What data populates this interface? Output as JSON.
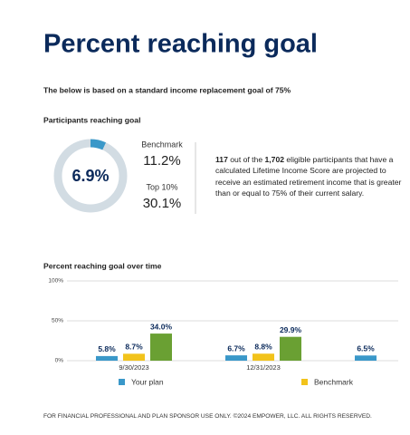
{
  "header": {
    "title": "Percent reaching goal",
    "subtitle": "The below is based on a standard income replacement goal of 75%"
  },
  "summary": {
    "heading": "Participants reaching goal",
    "donut": {
      "value": 6.9,
      "label": "6.9%",
      "color": "#3a98c9",
      "track_color": "#d2dce3"
    },
    "benchmark": {
      "label": "Benchmark",
      "value": "11.2%"
    },
    "top10": {
      "label": "Top 10%",
      "value": "30.1%"
    },
    "paragraph": [
      {
        "text": "117",
        "bold": true
      },
      {
        "text": " out of the "
      },
      {
        "text": "1,702",
        "bold": true
      },
      {
        "text": " eligible participants that have a calculated Lifetime Income Score are projected to receive an estimated retirement income that is greater than or equal to 75% of their current salary."
      }
    ]
  },
  "chart_data": {
    "type": "bar",
    "title": "Percent reaching goal over time",
    "categories": [
      "9/30/2023",
      "12/31/2023",
      null
    ],
    "series": [
      {
        "name": "Your plan",
        "color": "#3a98c9",
        "values": [
          5.8,
          6.7,
          6.5
        ],
        "value_labels": [
          "5.8%",
          "6.7%",
          "6.5%"
        ]
      },
      {
        "name": "Benchmark",
        "color": "#f2c31b",
        "values": [
          8.7,
          8.8,
          null
        ],
        "value_labels": [
          "8.7%",
          "8.8%",
          null
        ]
      },
      {
        "color": "#6aa033",
        "values": [
          34.0,
          29.9,
          null
        ],
        "value_labels": [
          "34.0%",
          "29.9%",
          null
        ]
      }
    ],
    "ylim": [
      0,
      100
    ],
    "yticks": [
      {
        "value": 0,
        "label": "0%"
      },
      {
        "value": 50,
        "label": "50%"
      },
      {
        "value": 100,
        "label": "100%"
      }
    ],
    "grid": true
  },
  "footer": {
    "text": "FOR FINANCIAL PROFESSIONAL AND PLAN SPONSOR USE ONLY. ©2024 EMPOWER, LLC. ALL RIGHTS RESERVED."
  }
}
